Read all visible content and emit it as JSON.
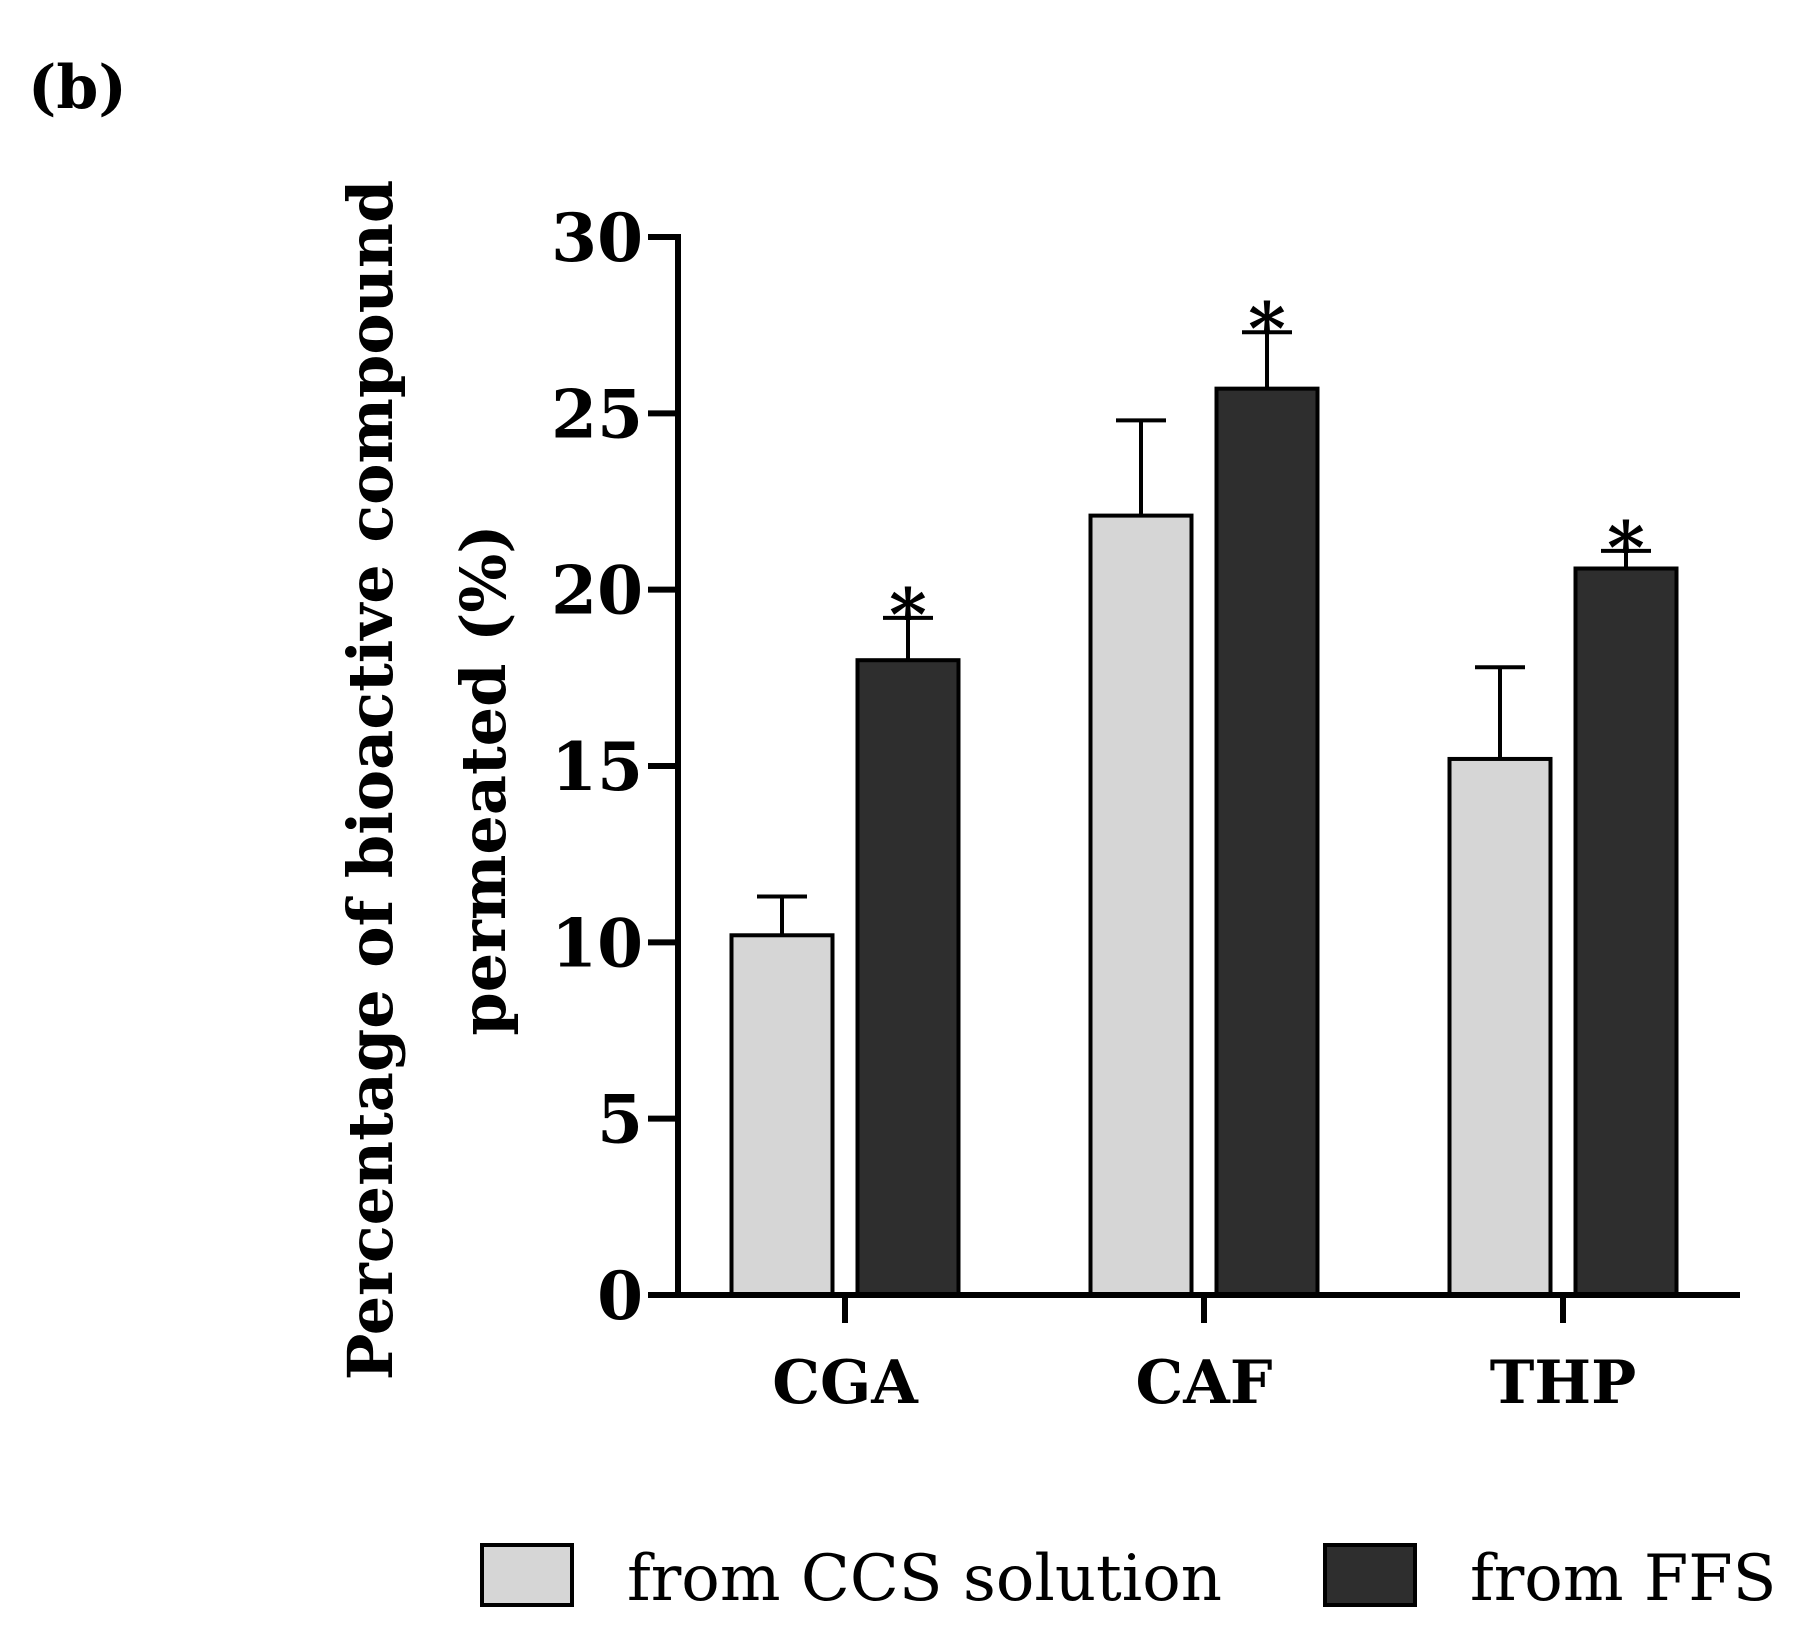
{
  "panel_label": "(b)",
  "colors": {
    "from CCS solution": "#d6d6d6",
    "from FFS": "#2e2e2e",
    "outline": "#000000"
  },
  "chart_data": {
    "type": "bar",
    "title": "",
    "xlabel": "",
    "ylabel_lines": [
      "Percentage of bioactive compound",
      "permeated (%)"
    ],
    "categories": [
      "CGA",
      "CAF",
      "THP"
    ],
    "ylim": [
      0,
      30
    ],
    "yticks": [
      0,
      5,
      10,
      15,
      20,
      25,
      30
    ],
    "grid": false,
    "legend_position": "bottom",
    "series": [
      {
        "name": "from CCS solution",
        "values": [
          10.2,
          22.1,
          15.2
        ],
        "errors": [
          1.1,
          2.7,
          2.6
        ],
        "significance": [
          "",
          "",
          ""
        ]
      },
      {
        "name": "from FFS",
        "values": [
          18.0,
          25.7,
          20.6
        ],
        "errors": [
          1.2,
          1.6,
          0.5
        ],
        "significance": [
          "*",
          "*",
          "*"
        ]
      }
    ]
  }
}
